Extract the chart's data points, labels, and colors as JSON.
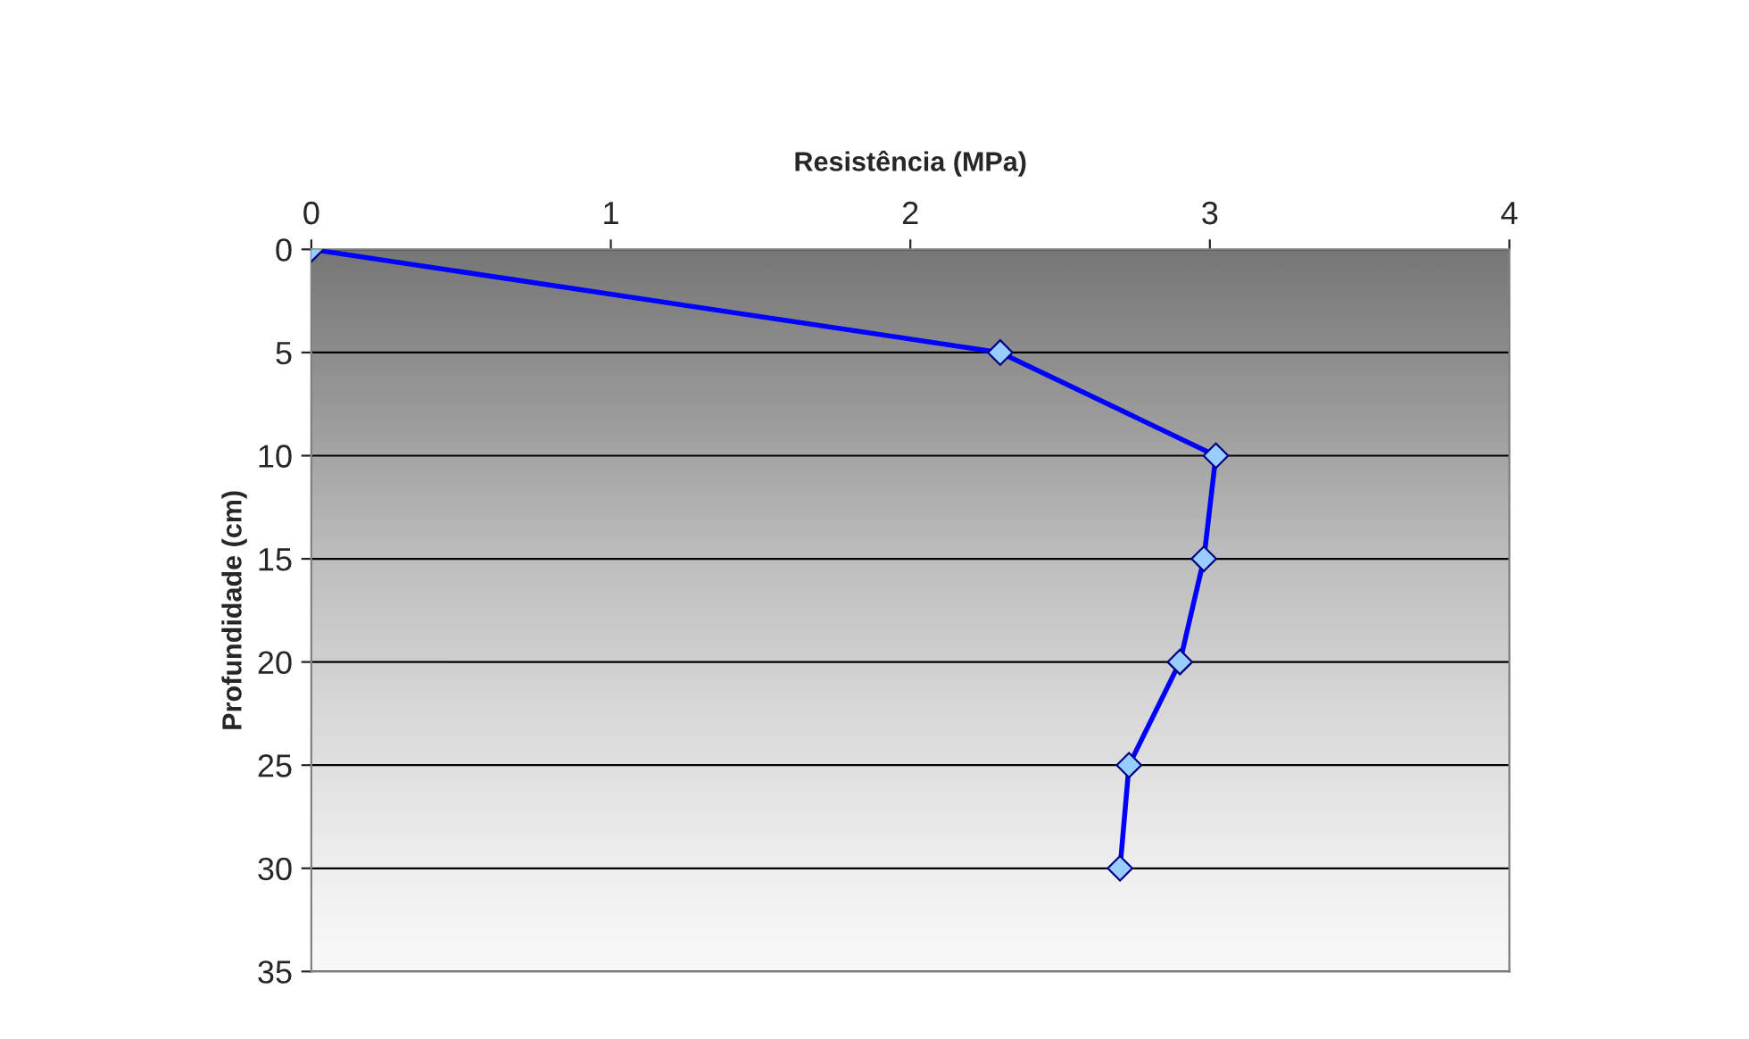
{
  "chart_data": {
    "type": "line",
    "xlabel": "Resistência (MPa)",
    "ylabel": "Profundidade (cm)",
    "series": [
      {
        "color": "#0000ff",
        "x": [
          0,
          2.3,
          3.02,
          2.98,
          2.9,
          2.73,
          2.7
        ],
        "values": [
          0,
          5,
          10,
          15,
          20,
          25,
          30
        ]
      }
    ],
    "xlim": [
      0,
      4
    ],
    "xticks": [
      0,
      1,
      2,
      3,
      4
    ],
    "ylim": [
      35,
      0
    ],
    "yticks": [
      0,
      5,
      10,
      15,
      20,
      25,
      30,
      35
    ],
    "grid": "y",
    "marker": "diamond",
    "line_style": "solid",
    "legend": false
  }
}
